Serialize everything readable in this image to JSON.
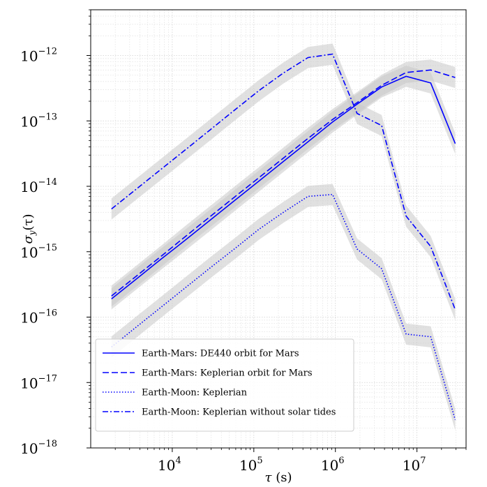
{
  "chart_data": {
    "type": "line",
    "x_scale": "log",
    "y_scale": "log",
    "xlim": [
      1000,
      40000000
    ],
    "ylim": [
      1e-18,
      5e-12
    ],
    "xlabel": {
      "symbol": "τ",
      "unit": " (s)"
    },
    "ylabel": {
      "symbol": "σ",
      "sub": "y",
      "arg": "(τ)"
    },
    "grid": true,
    "legend_position": "lower-left",
    "x_ticks": [
      {
        "base": "10",
        "exp": "4",
        "value": 10000
      },
      {
        "base": "10",
        "exp": "5",
        "value": 100000
      },
      {
        "base": "10",
        "exp": "6",
        "value": 1000000
      },
      {
        "base": "10",
        "exp": "7",
        "value": 10000000
      }
    ],
    "y_ticks": [
      {
        "base": "10",
        "exp": "−12",
        "value": 1e-12
      },
      {
        "base": "10",
        "exp": "−13",
        "value": 1e-13
      },
      {
        "base": "10",
        "exp": "−14",
        "value": 1e-14
      },
      {
        "base": "10",
        "exp": "−15",
        "value": 1e-15
      },
      {
        "base": "10",
        "exp": "−16",
        "value": 1e-16
      },
      {
        "base": "10",
        "exp": "−17",
        "value": 1e-17
      },
      {
        "base": "10",
        "exp": "−18",
        "value": 1e-18
      }
    ],
    "x": [
      1800,
      3600,
      7200,
      14400,
      28800,
      57600,
      115200,
      230400,
      460800,
      921600,
      1843200,
      3686400,
      7372800,
      14745600,
      29491200
    ],
    "series": [
      {
        "name": "Earth-Mars: DE440 orbit for Mars",
        "style": "solid",
        "color": "#0000ff",
        "values": [
          1.9e-16,
          3.8e-16,
          7.6e-16,
          1.5e-15,
          3e-15,
          6e-15,
          1.2e-14,
          2.4e-14,
          4.8e-14,
          9.6e-14,
          1.8e-13,
          3.3e-13,
          4.8e-13,
          3.8e-13,
          4.5e-14
        ]
      },
      {
        "name": "Earth-Mars: Keplerian orbit for Mars",
        "style": "dashed",
        "color": "#0000ff",
        "values": [
          2.1e-16,
          4.2e-16,
          8.4e-16,
          1.7e-15,
          3.4e-15,
          6.8e-15,
          1.35e-14,
          2.7e-14,
          5.4e-14,
          1.05e-13,
          1.9e-13,
          3.5e-13,
          5.5e-13,
          6e-13,
          4.6e-13
        ]
      },
      {
        "name": "Earth-Moon: Keplerian",
        "style": "dotted",
        "color": "#0000ff",
        "values": [
          3.5e-17,
          7e-17,
          1.4e-16,
          2.8e-16,
          5.6e-16,
          1.1e-15,
          2.2e-15,
          4e-15,
          7e-15,
          7.5e-15,
          1.1e-15,
          5.5e-16,
          5.5e-17,
          5e-17,
          2.7e-18
        ]
      },
      {
        "name": "Earth-Moon: Keplerian without solar tides",
        "style": "dashdot",
        "color": "#0000ff",
        "values": [
          4.5e-15,
          9e-15,
          1.8e-14,
          3.6e-14,
          7.2e-14,
          1.45e-13,
          2.9e-13,
          5.4e-13,
          9.3e-13,
          1.05e-12,
          1.3e-13,
          8.5e-14,
          3.5e-15,
          1.2e-15,
          1.3e-16
        ]
      }
    ],
    "band": {
      "color": "#c8c8c8",
      "opacity": 0.55,
      "spread": 1.45
    }
  }
}
